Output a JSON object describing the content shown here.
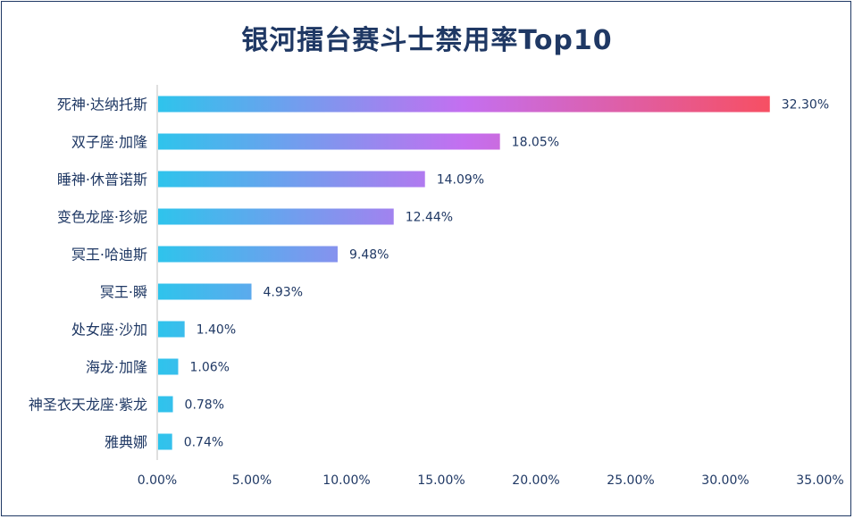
{
  "chart_data": {
    "type": "bar",
    "orientation": "horizontal",
    "title": "银河擂台赛斗士禁用率Top10",
    "categories": [
      "死神·达纳托斯",
      "双子座·加隆",
      "睡神·休普诺斯",
      "变色龙座·珍妮",
      "冥王·哈迪斯",
      "冥王·瞬",
      "处女座·沙加",
      "海龙·加隆",
      "神圣衣天龙座·紫龙",
      "雅典娜"
    ],
    "values": [
      32.3,
      18.05,
      14.09,
      12.44,
      9.48,
      4.93,
      1.4,
      1.06,
      0.78,
      0.74
    ],
    "value_labels": [
      "32.30%",
      "18.05%",
      "14.09%",
      "12.44%",
      "9.48%",
      "4.93%",
      "1.40%",
      "1.06%",
      "0.78%",
      "0.74%"
    ],
    "xlim": [
      0,
      35
    ],
    "x_ticks": [
      "0.00%",
      "5.00%",
      "10.00%",
      "15.00%",
      "20.00%",
      "25.00%",
      "30.00%",
      "35.00%"
    ],
    "grid": false,
    "legend": "none",
    "colors": {
      "gradient_start": "#2ec4ec",
      "gradient_mid": "#c46ff0",
      "gradient_end": "#f74f62",
      "text": "#1f3864"
    }
  }
}
